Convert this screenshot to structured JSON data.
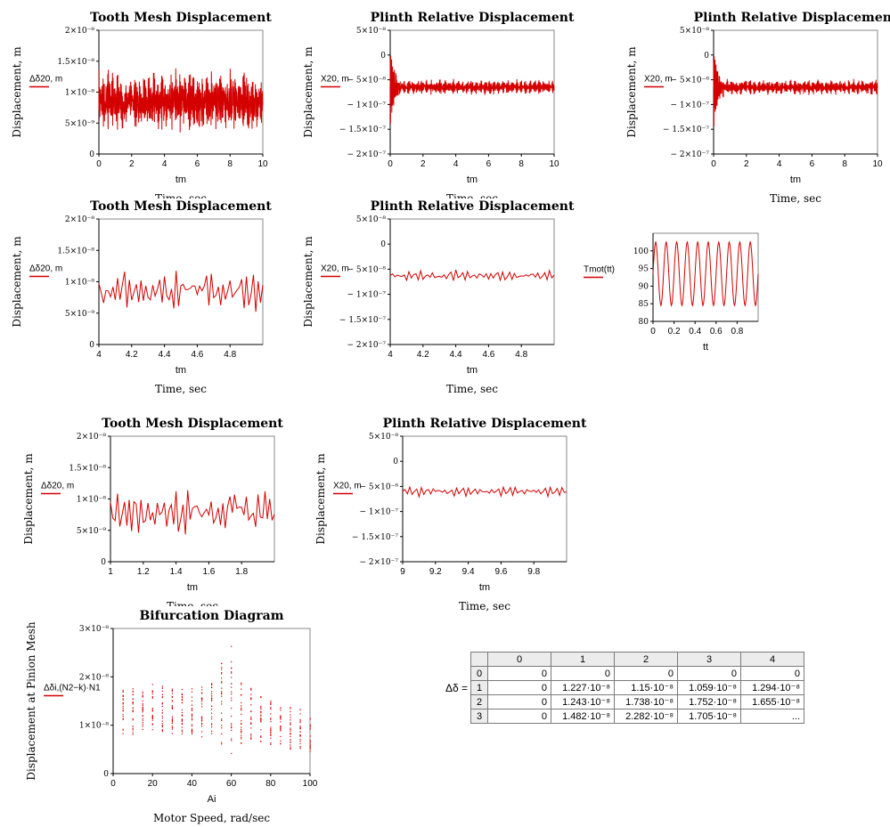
{
  "plots": [
    {
      "id": "p1",
      "type": "line",
      "title": "Tooth Mesh Displacement",
      "ylabel": "Displacement, m",
      "legend": "Δδ20, m",
      "xlabel": "tm",
      "caption": "Time, sec",
      "caption_clipped": true,
      "xlim": [
        0,
        10
      ],
      "xticks": [
        "0",
        "2",
        "4",
        "6",
        "8",
        "10"
      ],
      "ylim": [
        0,
        2e-08
      ],
      "yticks": [
        {
          "v": 2e-08,
          "l": "2×10⁻⁸"
        },
        {
          "v": 1.5e-08,
          "l": "1.5×10⁻⁸"
        },
        {
          "v": 1e-08,
          "l": "1×10⁻⁸"
        },
        {
          "v": 5e-09,
          "l": "5×10⁻⁹"
        },
        {
          "v": 0,
          "l": "0"
        }
      ],
      "signal": {
        "base": 8.5e-09,
        "amp": 3.5e-09,
        "noise": 2.2e-09,
        "freq": 28,
        "n": 900,
        "transient": 0,
        "seed": 3
      }
    },
    {
      "id": "p2",
      "type": "line",
      "title": "Plinth Relative Displacement",
      "ylabel": "Displacement, m",
      "legend": "X20, m",
      "xlabel": "tm",
      "caption": "Time, sec",
      "caption_clipped": true,
      "xlim": [
        0,
        10
      ],
      "xticks": [
        "0",
        "2",
        "4",
        "6",
        "8",
        "10"
      ],
      "ylim": [
        -2e-07,
        5e-08
      ],
      "yticks": [
        {
          "v": 5e-08,
          "l": "5×10⁻⁸"
        },
        {
          "v": 0,
          "l": "0"
        },
        {
          "v": -5e-08,
          "l": "− 5×10⁻⁸"
        },
        {
          "v": -1e-07,
          "l": "− 1×10⁻⁷"
        },
        {
          "v": -1.5e-07,
          "l": "− 1.5×10⁻⁷"
        },
        {
          "v": -2e-07,
          "l": "− 2×10⁻⁷"
        }
      ],
      "signal": {
        "base": -6.5e-08,
        "amp": 1.2e-08,
        "noise": 5e-09,
        "freq": 28,
        "n": 900,
        "transient": 8e-08,
        "seed": 5
      }
    },
    {
      "id": "p3",
      "type": "line",
      "title": "Plinth Relative Displacement",
      "ylabel": "Displacement, m",
      "legend": "X20, m",
      "xlabel": "tm",
      "caption": "Time, sec",
      "caption_clipped": false,
      "xlim": [
        0,
        10
      ],
      "xticks": [
        "0",
        "2",
        "4",
        "6",
        "8",
        "10"
      ],
      "ylim": [
        -2e-07,
        5e-08
      ],
      "yticks": [
        {
          "v": 5e-08,
          "l": "5×10⁻⁸"
        },
        {
          "v": 0,
          "l": "0"
        },
        {
          "v": -5e-08,
          "l": "− 5×10⁻⁸"
        },
        {
          "v": -1e-07,
          "l": "− 1×10⁻⁷"
        },
        {
          "v": -1.5e-07,
          "l": "− 1.5×10⁻⁷"
        },
        {
          "v": -2e-07,
          "l": "− 2×10⁻⁷"
        }
      ],
      "signal": {
        "base": -6.5e-08,
        "amp": 1.2e-08,
        "noise": 5e-09,
        "freq": 28,
        "n": 900,
        "transient": 8e-08,
        "seed": 7
      }
    },
    {
      "id": "p4",
      "type": "line",
      "title": "Tooth Mesh Displacement",
      "ylabel": "Displacement, m",
      "legend": "Δδ20, m",
      "xlabel": "tm",
      "caption": "Time, sec",
      "caption_clipped": false,
      "xlim": [
        4,
        5
      ],
      "xticks": [
        "4",
        "4.2",
        "4.4",
        "4.6",
        "4.8"
      ],
      "ylim": [
        0,
        2e-08
      ],
      "yticks": [
        {
          "v": 2e-08,
          "l": "2×10⁻⁸"
        },
        {
          "v": 1.5e-08,
          "l": "1.5×10⁻⁸"
        },
        {
          "v": 1e-08,
          "l": "1×10⁻⁸"
        },
        {
          "v": 5e-09,
          "l": "5×10⁻⁹"
        },
        {
          "v": 0,
          "l": "0"
        }
      ],
      "signal": {
        "base": 8.5e-09,
        "amp": 3e-09,
        "noise": 1.5e-09,
        "freq": 28,
        "n": 70,
        "transient": 0,
        "seed": 11
      }
    },
    {
      "id": "p5",
      "type": "line",
      "title": "Plinth Relative Displacement",
      "ylabel": "Displacement, m",
      "legend": "X20, m",
      "xlabel": "tm",
      "caption": "Time, sec",
      "caption_clipped": false,
      "xlim": [
        4,
        5
      ],
      "xticks": [
        "4",
        "4.2",
        "4.4",
        "4.6",
        "4.8"
      ],
      "ylim": [
        -2e-07,
        5e-08
      ],
      "yticks": [
        {
          "v": 5e-08,
          "l": "5×10⁻⁸"
        },
        {
          "v": 0,
          "l": "0"
        },
        {
          "v": -5e-08,
          "l": "− 5×10⁻⁸"
        },
        {
          "v": -1e-07,
          "l": "− 1×10⁻⁷"
        },
        {
          "v": -1.5e-07,
          "l": "− 1.5×10⁻⁷"
        },
        {
          "v": -2e-07,
          "l": "− 2×10⁻⁷"
        }
      ],
      "signal": {
        "base": -6.3e-08,
        "amp": 1.1e-08,
        "noise": 3e-09,
        "freq": 28,
        "n": 70,
        "transient": 0,
        "seed": 13
      }
    },
    {
      "id": "p6",
      "type": "line",
      "title": "",
      "ylabel": "",
      "legend": "Tmot(tt)",
      "xlabel": "tt",
      "caption": "",
      "caption_clipped": false,
      "xlim": [
        0,
        1
      ],
      "xticks": [
        "0",
        "0.2",
        "0.4",
        "0.6",
        "0.8"
      ],
      "ylim": [
        80,
        105
      ],
      "yticks": [
        {
          "v": 100,
          "l": "100"
        },
        {
          "v": 95,
          "l": "95"
        },
        {
          "v": 90,
          "l": "90"
        },
        {
          "v": 85,
          "l": "85"
        },
        {
          "v": 80,
          "l": "80"
        }
      ],
      "signal": {
        "sine": true,
        "base": 93.5,
        "amp": 9,
        "freq": 10,
        "n": 200,
        "transient": 0,
        "seed": 1
      }
    },
    {
      "id": "p7",
      "type": "line",
      "title": "Tooth Mesh Displacement",
      "ylabel": "Displacement, m",
      "legend": "Δδ20, m",
      "xlabel": "tm",
      "caption": "Time, sec",
      "caption_clipped": true,
      "xlim": [
        1,
        2
      ],
      "xticks": [
        "1",
        "1.2",
        "1.4",
        "1.6",
        "1.8"
      ],
      "ylim": [
        0,
        2e-08
      ],
      "yticks": [
        {
          "v": 2e-08,
          "l": "2×10⁻⁸"
        },
        {
          "v": 1.5e-08,
          "l": "1.5×10⁻⁸"
        },
        {
          "v": 1e-08,
          "l": "1×10⁻⁸"
        },
        {
          "v": 5e-09,
          "l": "5×10⁻⁹"
        },
        {
          "v": 0,
          "l": "0"
        }
      ],
      "signal": {
        "base": 8e-09,
        "amp": 3e-09,
        "noise": 1.8e-09,
        "freq": 28,
        "n": 70,
        "transient": 0,
        "seed": 17
      }
    },
    {
      "id": "p8",
      "type": "line",
      "title": "Plinth Relative Displacement",
      "ylabel": "Displacement, m",
      "legend": "X20, m",
      "xlabel": "tm",
      "caption": "Time, sec",
      "caption_clipped": false,
      "xlim": [
        9,
        10
      ],
      "xticks": [
        "9",
        "9.2",
        "9.4",
        "9.6",
        "9.8"
      ],
      "ylim": [
        -2e-07,
        5e-08
      ],
      "yticks": [
        {
          "v": 5e-08,
          "l": "5×10⁻⁸"
        },
        {
          "v": 0,
          "l": "0"
        },
        {
          "v": -5e-08,
          "l": "− 5×10⁻⁸"
        },
        {
          "v": -1e-07,
          "l": "− 1×10⁻⁷"
        },
        {
          "v": -1.5e-07,
          "l": "− 1.5×10⁻⁷"
        },
        {
          "v": -2e-07,
          "l": "− 2×10⁻⁷"
        }
      ],
      "signal": {
        "base": -6e-08,
        "amp": 1e-08,
        "noise": 2e-09,
        "freq": 28,
        "n": 70,
        "transient": 0,
        "seed": 19
      }
    },
    {
      "id": "p9",
      "type": "scatter",
      "title": "Bifurcation Diagram",
      "ylabel": "Displacement at Pinion Mesh",
      "legend": "Δδi,(N2−k)·N1",
      "xlabel": "Ai",
      "caption": "Motor Speed, rad/sec",
      "caption_clipped": false,
      "xlim": [
        0,
        100
      ],
      "xticks": [
        "0",
        "20",
        "40",
        "60",
        "80",
        "100"
      ],
      "ylim": [
        0,
        3e-08
      ],
      "yticks": [
        {
          "v": 3e-08,
          "l": "3×10⁻⁸"
        },
        {
          "v": 2e-08,
          "l": "2×10⁻⁸"
        },
        {
          "v": 1e-08,
          "l": "1×10⁻⁸"
        },
        {
          "v": 0,
          "l": "0"
        }
      ],
      "scatter": [
        {
          "x": 5,
          "min": 8e-09,
          "max": 1.75e-08
        },
        {
          "x": 10,
          "min": 8e-09,
          "max": 1.8e-08
        },
        {
          "x": 15,
          "min": 8.5e-09,
          "max": 1.7e-08
        },
        {
          "x": 20,
          "min": 8e-09,
          "max": 1.85e-08
        },
        {
          "x": 25,
          "min": 8e-09,
          "max": 1.85e-08
        },
        {
          "x": 30,
          "min": 8e-09,
          "max": 1.8e-08
        },
        {
          "x": 35,
          "min": 8e-09,
          "max": 1.9e-08
        },
        {
          "x": 40,
          "min": 8e-09,
          "max": 1.9e-08
        },
        {
          "x": 45,
          "min": 7.5e-09,
          "max": 1.85e-08
        },
        {
          "x": 50,
          "min": 8e-09,
          "max": 1.95e-08
        },
        {
          "x": 55,
          "min": 6e-09,
          "max": 2.35e-08
        },
        {
          "x": 60,
          "min": 3e-09,
          "max": 2.7e-08
        },
        {
          "x": 65,
          "min": 5e-09,
          "max": 1.95e-08
        },
        {
          "x": 70,
          "min": 7e-09,
          "max": 1.8e-08
        },
        {
          "x": 75,
          "min": 6.5e-09,
          "max": 1.7e-08
        },
        {
          "x": 80,
          "min": 6e-09,
          "max": 1.5e-08
        },
        {
          "x": 85,
          "min": 5.5e-09,
          "max": 1.4e-08
        },
        {
          "x": 90,
          "min": 5e-09,
          "max": 1.4e-08
        },
        {
          "x": 95,
          "min": 4.5e-09,
          "max": 1.35e-08
        },
        {
          "x": 100,
          "min": 4.5e-09,
          "max": 1.2e-08
        }
      ]
    }
  ],
  "table": {
    "label": "Δδ =",
    "headers": [
      "0",
      "1",
      "2",
      "3",
      "4"
    ],
    "rows": [
      [
        "0",
        "0",
        "0",
        "0",
        "0",
        "0"
      ],
      [
        "1",
        "0",
        "1.227·10⁻⁸",
        "1.15·10⁻⁸",
        "1.059·10⁻⁸",
        "1.294·10⁻⁸"
      ],
      [
        "2",
        "0",
        "1.243·10⁻⁸",
        "1.738·10⁻⁸",
        "1.752·10⁻⁸",
        "1.655·10⁻⁸"
      ],
      [
        "3",
        "0",
        "1.482·10⁻⁸",
        "2.282·10⁻⁸",
        "1.705·10⁻⁸",
        "..."
      ]
    ]
  },
  "colors": {
    "trace": "#d40000",
    "axis": "#000000",
    "frame": "#8a8a8a"
  }
}
